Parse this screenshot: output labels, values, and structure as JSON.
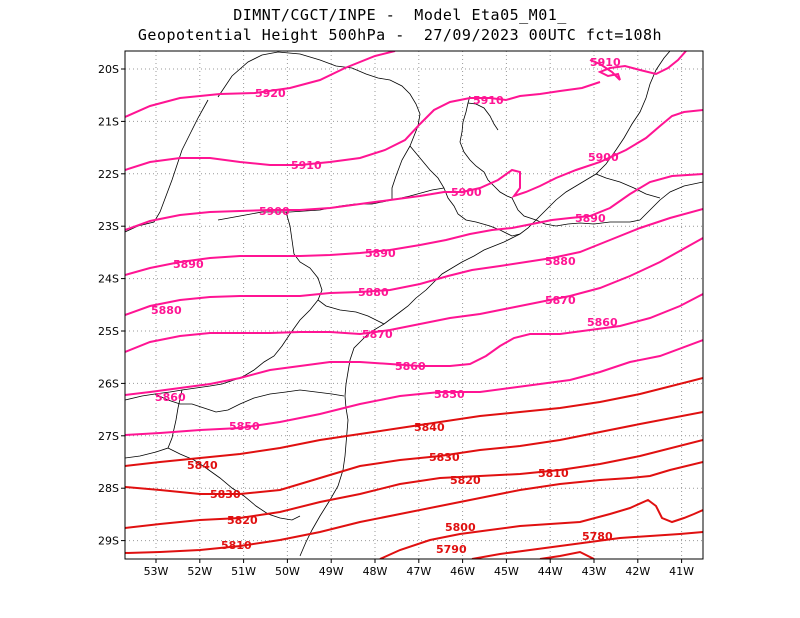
{
  "header": {
    "line1": "DIMNT/CGCT/INPE -  Model Eta05_M01_",
    "line2": "Geopotential Height 500hPa -  27/09/2023 00UTC fct=108h"
  },
  "map": {
    "lat_labels": [
      "20S",
      "21S",
      "22S",
      "23S",
      "24S",
      "25S",
      "26S",
      "27S",
      "28S",
      "29S"
    ],
    "lon_labels": [
      "53W",
      "52W",
      "51W",
      "50W",
      "49W",
      "48W",
      "47W",
      "46W",
      "45W",
      "44W",
      "43W",
      "42W",
      "41W"
    ],
    "colors": {
      "high": "#ff1493",
      "low": "#e01010",
      "coast": "#000000",
      "grid": "#999999"
    },
    "contours": [
      {
        "value": "5920",
        "label": "5920",
        "color": "#ff1493"
      },
      {
        "value": "5910",
        "label": "5910",
        "color": "#ff1493"
      },
      {
        "value": "5900",
        "label": "5900",
        "color": "#ff1493"
      },
      {
        "value": "5890",
        "label": "5890",
        "color": "#ff1493"
      },
      {
        "value": "5880",
        "label": "5880",
        "color": "#ff1493"
      },
      {
        "value": "5870",
        "label": "5870",
        "color": "#ff1493"
      },
      {
        "value": "5860",
        "label": "5860",
        "color": "#ff1493"
      },
      {
        "value": "5850",
        "label": "5850",
        "color": "#ff1493"
      },
      {
        "value": "5840",
        "label": "5840",
        "color": "#e01010"
      },
      {
        "value": "5830",
        "label": "5830",
        "color": "#e01010"
      },
      {
        "value": "5820",
        "label": "5820",
        "color": "#e01010"
      },
      {
        "value": "5810",
        "label": "5810",
        "color": "#e01010"
      },
      {
        "value": "5800",
        "label": "5800",
        "color": "#e01010"
      },
      {
        "value": "5790",
        "label": "5790",
        "color": "#e01010"
      },
      {
        "value": "5780",
        "label": "5780",
        "color": "#e01010"
      }
    ]
  }
}
